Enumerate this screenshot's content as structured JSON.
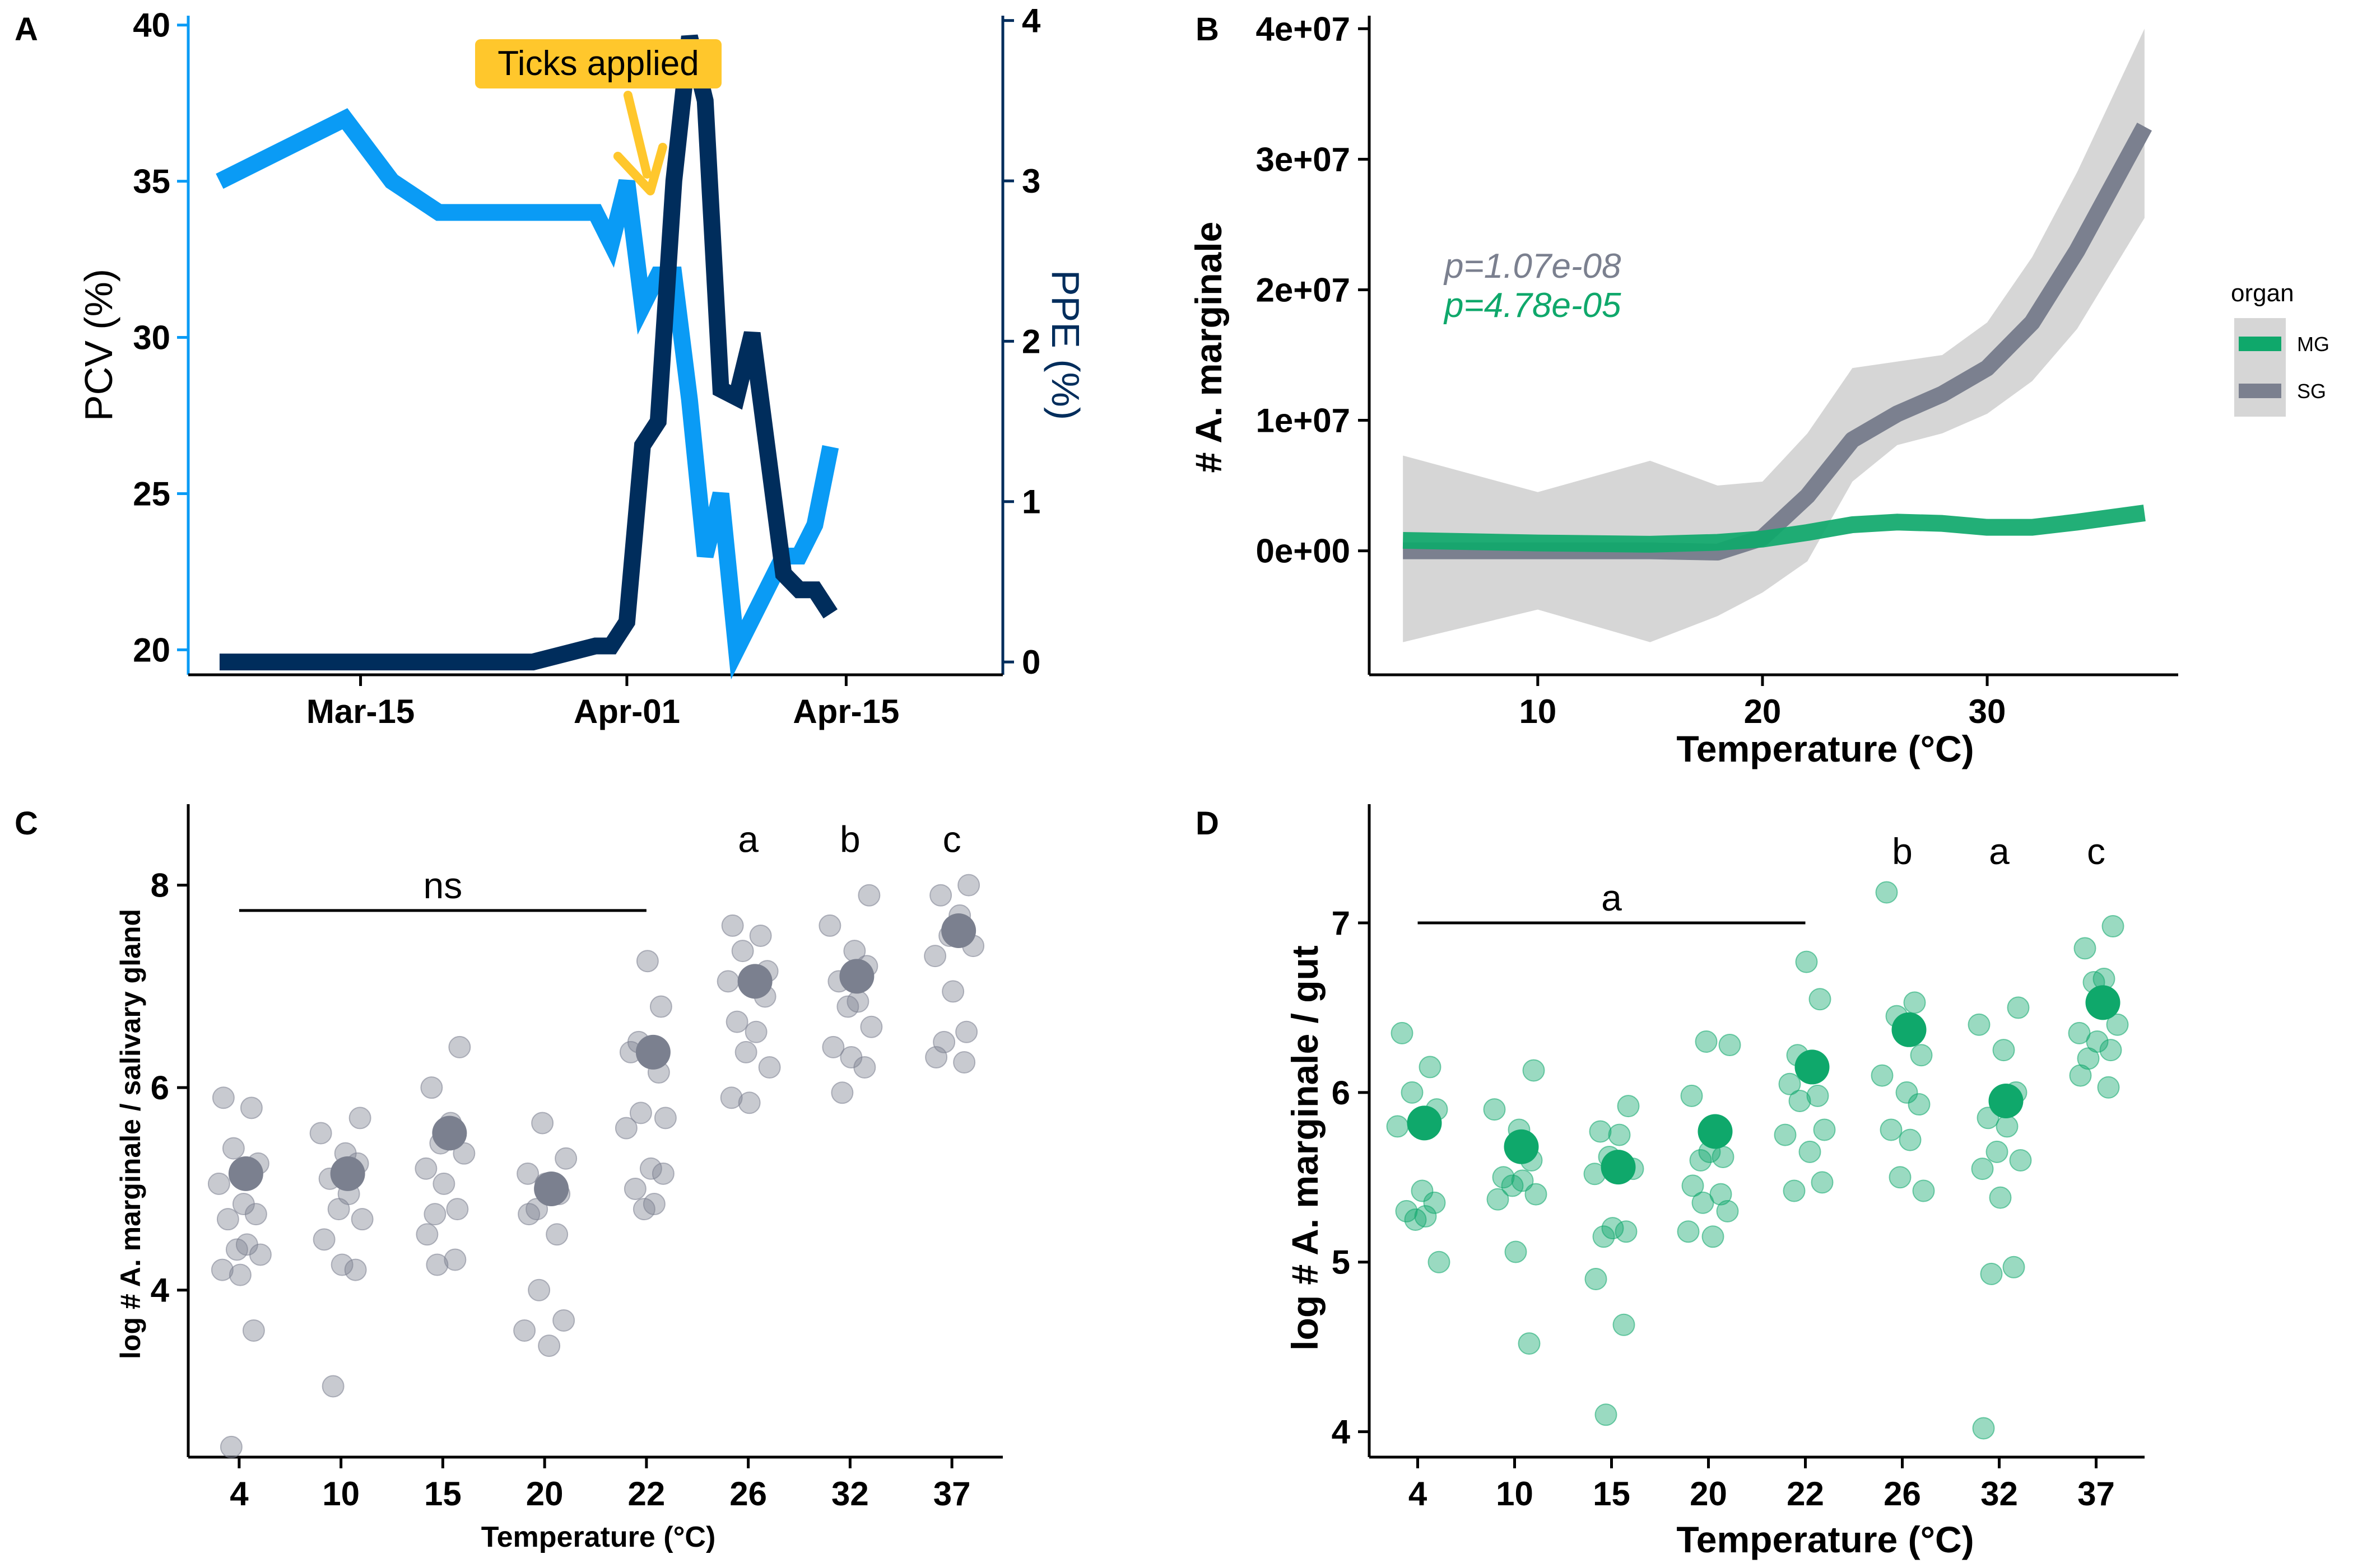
{
  "colors": {
    "pcv": "#0A9BF5",
    "ppe": "#002D5C",
    "sg": "#7B808F",
    "mg": "#0FA86B",
    "ci": "#D6D6D6",
    "arrow": "#FFC72C",
    "callout": "#FFC72C"
  },
  "panels": [
    "A",
    "B",
    "C",
    "D"
  ],
  "chart_data": [
    {
      "panel": "A",
      "type": "line",
      "xlim": [
        -5,
        47
      ],
      "x_ticks": [
        {
          "x": 6,
          "label": "Mar-15"
        },
        {
          "x": 23,
          "label": "Apr-01"
        },
        {
          "x": 37,
          "label": "Apr-15"
        }
      ],
      "ylabel": "PCV (%)",
      "ylim": [
        19.2,
        40.3
      ],
      "y_ticks": [
        20,
        25,
        30,
        35,
        40
      ],
      "y2label": "PPE (%)",
      "y2lim": [
        -0.08,
        4.03
      ],
      "y2_ticks": [
        0,
        1,
        2,
        3,
        4
      ],
      "annotation": {
        "text": "Ticks applied",
        "x": 24.5,
        "y2": 3
      },
      "series": [
        {
          "name": "PCV",
          "axis": "left",
          "x": [
            -3,
            5,
            8,
            11,
            21,
            22,
            23,
            24,
            25,
            26,
            27,
            28,
            29,
            30,
            31,
            32,
            33,
            34,
            35,
            36
          ],
          "values": [
            35,
            37,
            35,
            34,
            34,
            33,
            35,
            31,
            32,
            32,
            28,
            23,
            25,
            20,
            21,
            22,
            23,
            23,
            24,
            26.5
          ]
        },
        {
          "name": "PPE",
          "axis": "right",
          "x": [
            -3,
            17,
            21,
            22,
            23,
            24,
            25,
            26,
            27,
            28,
            29,
            30,
            31,
            32,
            33,
            34,
            35,
            36
          ],
          "values": [
            0,
            0,
            0.1,
            0.1,
            0.25,
            1.35,
            1.5,
            3,
            3.9,
            3.5,
            1.7,
            1.65,
            2.05,
            1.3,
            0.55,
            0.45,
            0.45,
            0.3
          ]
        }
      ]
    },
    {
      "panel": "B",
      "type": "line",
      "xlabel": "Temperature (°C)",
      "ylabel": "# A. marginale",
      "xlim": [
        2.5,
        38.5
      ],
      "ylim": [
        -9500000.0,
        41000000.0
      ],
      "x_ticks": [
        10,
        20,
        30
      ],
      "y_ticks": [
        {
          "v": 0,
          "label": "0e+00"
        },
        {
          "v": 10000000.0,
          "label": "1e+07"
        },
        {
          "v": 20000000.0,
          "label": "2e+07"
        },
        {
          "v": 30000000.0,
          "label": "3e+07"
        },
        {
          "v": 40000000.0,
          "label": "4e+07"
        }
      ],
      "pvalues": [
        {
          "text": "p=1.07e-08",
          "organ": "SG",
          "x": 5,
          "y": 22700000.0
        },
        {
          "text": "p=4.78e-05",
          "organ": "MG",
          "x": 5,
          "y": 19000000.0
        }
      ],
      "legend": {
        "title": "organ",
        "position": "right",
        "entries": [
          "MG",
          "SG"
        ]
      },
      "series": [
        {
          "name": "MG",
          "x": [
            4,
            10,
            15,
            18,
            20,
            22,
            24,
            26,
            28,
            30,
            32,
            34,
            37
          ],
          "values": [
            800000,
            600000,
            500000,
            650000,
            900000,
            1400000,
            2000000,
            2200000,
            2100000,
            1800000,
            1800000,
            2200000,
            2900000
          ]
        },
        {
          "name": "SG",
          "x": [
            4,
            10,
            15,
            18,
            20,
            22,
            24,
            26,
            28,
            30,
            32,
            34,
            37
          ],
          "values": [
            0,
            0,
            0,
            -100000,
            1000000,
            4200000,
            8500000,
            10500000,
            12000000,
            14000000,
            17500000,
            23000000,
            32500000
          ],
          "ci_lower": [
            -7000000,
            -4500000,
            -7000000,
            -5000000,
            -3200000,
            -800000,
            5300000,
            8100000,
            9000000,
            10500000,
            13000000,
            17000000,
            25500000
          ],
          "ci_upper": [
            7300000,
            4500000,
            6900000,
            5000000,
            5300000,
            9000000,
            14000000,
            14500000,
            15000000,
            17500000,
            22500000,
            29000000,
            40000000
          ]
        }
      ]
    },
    {
      "panel": "C",
      "type": "scatter",
      "xlabel": "Temperature (°C)",
      "ylabel": "log # A. marginale / salivary gland",
      "categories": [
        "4",
        "10",
        "15",
        "20",
        "22",
        "26",
        "32",
        "37"
      ],
      "ylim": [
        2.35,
        8.8
      ],
      "y_ticks": [
        4,
        6,
        8
      ],
      "bracket": {
        "from": "4",
        "to": "22",
        "y": 7.75,
        "label": "ns"
      },
      "letters": [
        {
          "category": "26",
          "label": "a"
        },
        {
          "category": "32",
          "label": "b"
        },
        {
          "category": "37",
          "label": "c"
        }
      ],
      "letter_y": 8.45,
      "means": [
        5.15,
        5.15,
        5.55,
        5.0,
        6.35,
        7.05,
        7.1,
        7.55
      ],
      "points": [
        [
          5.9,
          5.8,
          5.4,
          5.25,
          5.05,
          4.85,
          4.75,
          4.7,
          4.45,
          4.4,
          4.35,
          4.2,
          4.15,
          3.6,
          2.45
        ],
        [
          5.7,
          5.55,
          5.35,
          5.25,
          5.1,
          4.95,
          4.8,
          4.7,
          4.5,
          4.25,
          4.2,
          3.05
        ],
        [
          6.4,
          6.0,
          5.65,
          5.45,
          5.35,
          5.2,
          5.05,
          4.8,
          4.75,
          4.55,
          4.3,
          4.25
        ],
        [
          5.65,
          5.3,
          5.15,
          5.05,
          4.95,
          4.8,
          4.75,
          4.55,
          4.0,
          3.7,
          3.6,
          3.45
        ],
        [
          7.25,
          6.8,
          6.45,
          6.35,
          6.15,
          5.75,
          5.7,
          5.6,
          5.2,
          5.15,
          5.0,
          4.85,
          4.8
        ],
        [
          7.6,
          7.5,
          7.35,
          7.15,
          7.05,
          7.0,
          6.9,
          6.65,
          6.55,
          6.35,
          6.2,
          5.9,
          5.85
        ],
        [
          7.9,
          7.6,
          7.35,
          7.2,
          7.05,
          6.85,
          6.8,
          6.6,
          6.4,
          6.3,
          6.2,
          5.95
        ],
        [
          8.0,
          7.9,
          7.7,
          7.5,
          7.4,
          7.3,
          6.95,
          6.55,
          6.45,
          6.3,
          6.25
        ]
      ]
    },
    {
      "panel": "D",
      "type": "scatter",
      "xlabel": "Temperature (°C)",
      "ylabel": "log # A. marginale / gut",
      "categories": [
        "4",
        "10",
        "15",
        "20",
        "22",
        "26",
        "32",
        "37"
      ],
      "ylim": [
        3.85,
        7.7
      ],
      "y_ticks": [
        4,
        5,
        6,
        7
      ],
      "bracket": {
        "from": "4",
        "to": "22",
        "y": 7.0,
        "label": "a"
      },
      "letters": [
        {
          "category": "26",
          "label": "b"
        },
        {
          "category": "32",
          "label": "a"
        },
        {
          "category": "37",
          "label": "c"
        }
      ],
      "letter_y": 7.42,
      "means": [
        5.82,
        5.68,
        5.56,
        5.77,
        6.15,
        6.37,
        5.95,
        6.53
      ],
      "points": [
        [
          6.35,
          6.15,
          6.0,
          5.9,
          5.8,
          5.42,
          5.35,
          5.3,
          5.27,
          5.25,
          5.0
        ],
        [
          6.13,
          5.9,
          5.78,
          5.6,
          5.5,
          5.48,
          5.45,
          5.4,
          5.37,
          5.06,
          4.52
        ],
        [
          5.92,
          5.77,
          5.75,
          5.62,
          5.55,
          5.52,
          5.2,
          5.18,
          5.15,
          4.9,
          4.63,
          4.1
        ],
        [
          6.3,
          6.28,
          5.98,
          5.65,
          5.62,
          5.6,
          5.45,
          5.4,
          5.35,
          5.3,
          5.18,
          5.15
        ],
        [
          6.77,
          6.55,
          6.22,
          6.05,
          5.98,
          5.95,
          5.78,
          5.75,
          5.65,
          5.47,
          5.42
        ],
        [
          7.18,
          6.53,
          6.45,
          6.22,
          6.1,
          6.0,
          5.93,
          5.78,
          5.72,
          5.5,
          5.42
        ],
        [
          6.5,
          6.4,
          6.25,
          6.0,
          5.85,
          5.8,
          5.65,
          5.6,
          5.55,
          5.38,
          4.97,
          4.93,
          4.02
        ],
        [
          6.98,
          6.85,
          6.67,
          6.65,
          6.4,
          6.35,
          6.3,
          6.25,
          6.2,
          6.1,
          6.03
        ]
      ]
    }
  ]
}
